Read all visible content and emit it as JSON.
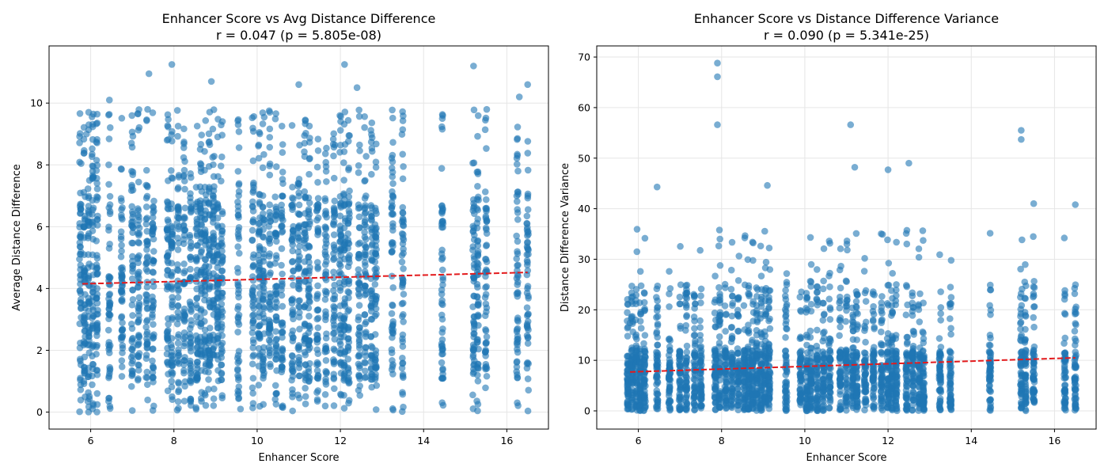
{
  "chart_data": [
    {
      "type": "scatter",
      "title_line1": "Enhancer Score vs Avg Distance Difference",
      "title_line2": "r = 0.047 (p = 5.805e-08)",
      "xlabel": "Enhancer Score",
      "ylabel": "Average Distance Difference",
      "xlim": [
        5.0,
        17.0
      ],
      "ylim": [
        -0.55,
        11.85
      ],
      "xticks": [
        6,
        8,
        10,
        12,
        14,
        16
      ],
      "yticks": [
        0,
        2,
        4,
        6,
        8,
        10
      ],
      "grid": true,
      "point_color": "#1f77b4",
      "trend_color": "#e31a1c",
      "trend_line": {
        "x": [
          5.8,
          16.5
        ],
        "y": [
          4.15,
          4.52
        ]
      },
      "score_columns": [
        5.75,
        5.85,
        5.95,
        6.05,
        6.15,
        6.45,
        6.75,
        7.0,
        7.15,
        7.35,
        7.5,
        7.85,
        7.95,
        8.1,
        8.25,
        8.4,
        8.55,
        8.65,
        8.75,
        8.85,
        8.95,
        9.05,
        9.15,
        9.55,
        9.9,
        10.05,
        10.15,
        10.3,
        10.45,
        10.6,
        10.85,
        11.0,
        11.15,
        11.25,
        11.45,
        11.65,
        11.85,
        12.0,
        12.1,
        12.2,
        12.45,
        12.6,
        12.75,
        12.85,
        13.25,
        13.5,
        14.45,
        15.2,
        15.3,
        15.5,
        16.25,
        16.5
      ],
      "highlighted_points": [
        {
          "x": 7.95,
          "y": 11.25
        },
        {
          "x": 7.4,
          "y": 10.95
        },
        {
          "x": 12.1,
          "y": 11.25
        },
        {
          "x": 15.2,
          "y": 11.2
        },
        {
          "x": 8.9,
          "y": 10.7
        },
        {
          "x": 11.0,
          "y": 10.6
        },
        {
          "x": 12.4,
          "y": 10.5
        },
        {
          "x": 16.5,
          "y": 10.6
        },
        {
          "x": 6.45,
          "y": 10.1
        },
        {
          "x": 16.3,
          "y": 10.2
        },
        {
          "x": 14.45,
          "y": 9.5
        },
        {
          "x": 5.9,
          "y": 9.0
        },
        {
          "x": 16.25,
          "y": 0.3
        },
        {
          "x": 7.0,
          "y": 0.05
        },
        {
          "x": 9.6,
          "y": 0.1
        }
      ]
    },
    {
      "type": "scatter",
      "title_line1": "Enhancer Score vs Distance Difference Variance",
      "title_line2": "r = 0.090 (p = 5.341e-25)",
      "xlabel": "Enhancer Score",
      "ylabel": "Distance Difference Variance",
      "xlim": [
        5.0,
        17.0
      ],
      "ylim": [
        -3.6,
        72.2
      ],
      "xticks": [
        6,
        8,
        10,
        12,
        14,
        16
      ],
      "yticks": [
        0,
        10,
        20,
        30,
        40,
        50,
        60,
        70
      ],
      "grid": true,
      "point_color": "#1f77b4",
      "trend_color": "#e31a1c",
      "trend_line": {
        "x": [
          5.8,
          16.5
        ],
        "y": [
          7.7,
          10.5
        ]
      },
      "score_columns": [
        5.75,
        5.85,
        5.95,
        6.05,
        6.15,
        6.45,
        6.75,
        7.0,
        7.15,
        7.35,
        7.5,
        7.85,
        7.95,
        8.1,
        8.25,
        8.4,
        8.55,
        8.65,
        8.75,
        8.85,
        8.95,
        9.05,
        9.15,
        9.55,
        9.9,
        10.05,
        10.15,
        10.3,
        10.45,
        10.6,
        10.85,
        11.0,
        11.15,
        11.25,
        11.45,
        11.65,
        11.85,
        12.0,
        12.1,
        12.2,
        12.45,
        12.6,
        12.75,
        12.85,
        13.25,
        13.5,
        14.45,
        15.2,
        15.3,
        15.5,
        16.25,
        16.5
      ],
      "highlighted_points": [
        {
          "x": 7.9,
          "y": 68.8
        },
        {
          "x": 7.9,
          "y": 66.1
        },
        {
          "x": 7.9,
          "y": 56.6
        },
        {
          "x": 11.1,
          "y": 56.6
        },
        {
          "x": 15.2,
          "y": 55.5
        },
        {
          "x": 15.2,
          "y": 53.7
        },
        {
          "x": 12.5,
          "y": 49.0
        },
        {
          "x": 11.2,
          "y": 48.2
        },
        {
          "x": 12.0,
          "y": 47.7
        },
        {
          "x": 6.45,
          "y": 44.3
        },
        {
          "x": 9.1,
          "y": 44.6
        },
        {
          "x": 16.5,
          "y": 40.8
        },
        {
          "x": 15.5,
          "y": 41.0
        },
        {
          "x": 14.45,
          "y": 15.0
        },
        {
          "x": 5.8,
          "y": 17.4
        }
      ]
    }
  ]
}
